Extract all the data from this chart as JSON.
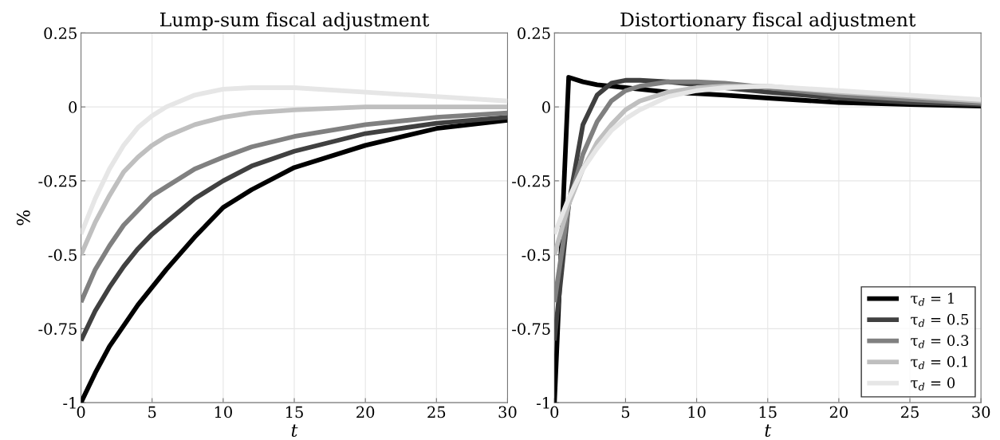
{
  "chart_data": [
    {
      "type": "line",
      "title": "Lump-sum fiscal adjustment",
      "xlabel": "t",
      "ylabel": "%",
      "x": [
        0,
        1,
        2,
        3,
        4,
        5,
        6,
        8,
        10,
        12,
        15,
        20,
        25,
        30
      ],
      "xlim": [
        0,
        30
      ],
      "xticks": [
        0,
        5,
        10,
        15,
        20,
        25,
        30
      ],
      "ylim": [
        -1,
        0.25
      ],
      "yticks": [
        -1,
        -0.75,
        -0.5,
        -0.25,
        0,
        0.25
      ],
      "grid": true,
      "line_style": "solid",
      "series": [
        {
          "color": "#000000",
          "values": [
            -1.0,
            -0.9,
            -0.81,
            -0.74,
            -0.67,
            -0.61,
            -0.55,
            -0.44,
            -0.34,
            -0.28,
            -0.205,
            -0.13,
            -0.073,
            -0.045
          ]
        },
        {
          "color": "#404040",
          "values": [
            -0.79,
            -0.69,
            -0.61,
            -0.54,
            -0.48,
            -0.43,
            -0.39,
            -0.31,
            -0.25,
            -0.2,
            -0.15,
            -0.09,
            -0.055,
            -0.035
          ]
        },
        {
          "color": "#808080",
          "values": [
            -0.66,
            -0.55,
            -0.47,
            -0.4,
            -0.35,
            -0.3,
            -0.27,
            -0.21,
            -0.17,
            -0.135,
            -0.1,
            -0.06,
            -0.035,
            -0.02
          ]
        },
        {
          "color": "#bfbfbf",
          "values": [
            -0.5,
            -0.39,
            -0.3,
            -0.22,
            -0.17,
            -0.13,
            -0.1,
            -0.06,
            -0.035,
            -0.02,
            -0.01,
            0.0,
            0.0,
            0.0
          ]
        },
        {
          "color": "#e6e6e6",
          "values": [
            -0.43,
            -0.31,
            -0.21,
            -0.13,
            -0.07,
            -0.03,
            0.0,
            0.04,
            0.06,
            0.065,
            0.065,
            0.05,
            0.035,
            0.02
          ]
        }
      ]
    },
    {
      "type": "line",
      "title": "Distortionary fiscal adjustment",
      "xlabel": "t",
      "x": [
        0,
        1,
        2,
        3,
        4,
        5,
        6,
        8,
        10,
        12,
        15,
        20,
        25,
        30
      ],
      "xlim": [
        0,
        30
      ],
      "xticks": [
        0,
        5,
        10,
        15,
        20,
        25,
        30
      ],
      "ylim": [
        -1,
        0.25
      ],
      "yticks": [
        -1,
        -0.75,
        -0.5,
        -0.25,
        0,
        0.25
      ],
      "grid": true,
      "line_style": "solid",
      "legend": "bottom right",
      "series": [
        {
          "name": "τ$_{d}$ = 1",
          "color": "#000000",
          "values": [
            -1.0,
            0.1,
            0.085,
            0.075,
            0.07,
            0.065,
            0.06,
            0.05,
            0.045,
            0.04,
            0.03,
            0.015,
            0.008,
            0.003
          ]
        },
        {
          "name": "τ$_{d}$ = 0.5",
          "color": "#404040",
          "values": [
            -0.79,
            -0.33,
            -0.06,
            0.04,
            0.08,
            0.09,
            0.09,
            0.085,
            0.075,
            0.065,
            0.05,
            0.03,
            0.015,
            0.008
          ]
        },
        {
          "name": "τ$_{d}$ = 0.3",
          "color": "#808080",
          "values": [
            -0.66,
            -0.33,
            -0.16,
            -0.05,
            0.02,
            0.055,
            0.07,
            0.085,
            0.085,
            0.08,
            0.065,
            0.04,
            0.025,
            0.012
          ]
        },
        {
          "name": "τ$_{d}$ = 0.1",
          "color": "#bfbfbf",
          "values": [
            -0.5,
            -0.33,
            -0.21,
            -0.12,
            -0.06,
            -0.01,
            0.02,
            0.05,
            0.065,
            0.07,
            0.07,
            0.05,
            0.035,
            0.02
          ]
        },
        {
          "name": "τ$_{d}$ = 0",
          "color": "#e6e6e6",
          "values": [
            -0.43,
            -0.31,
            -0.21,
            -0.14,
            -0.08,
            -0.04,
            -0.01,
            0.035,
            0.055,
            0.065,
            0.07,
            0.055,
            0.04,
            0.025
          ]
        }
      ]
    }
  ]
}
